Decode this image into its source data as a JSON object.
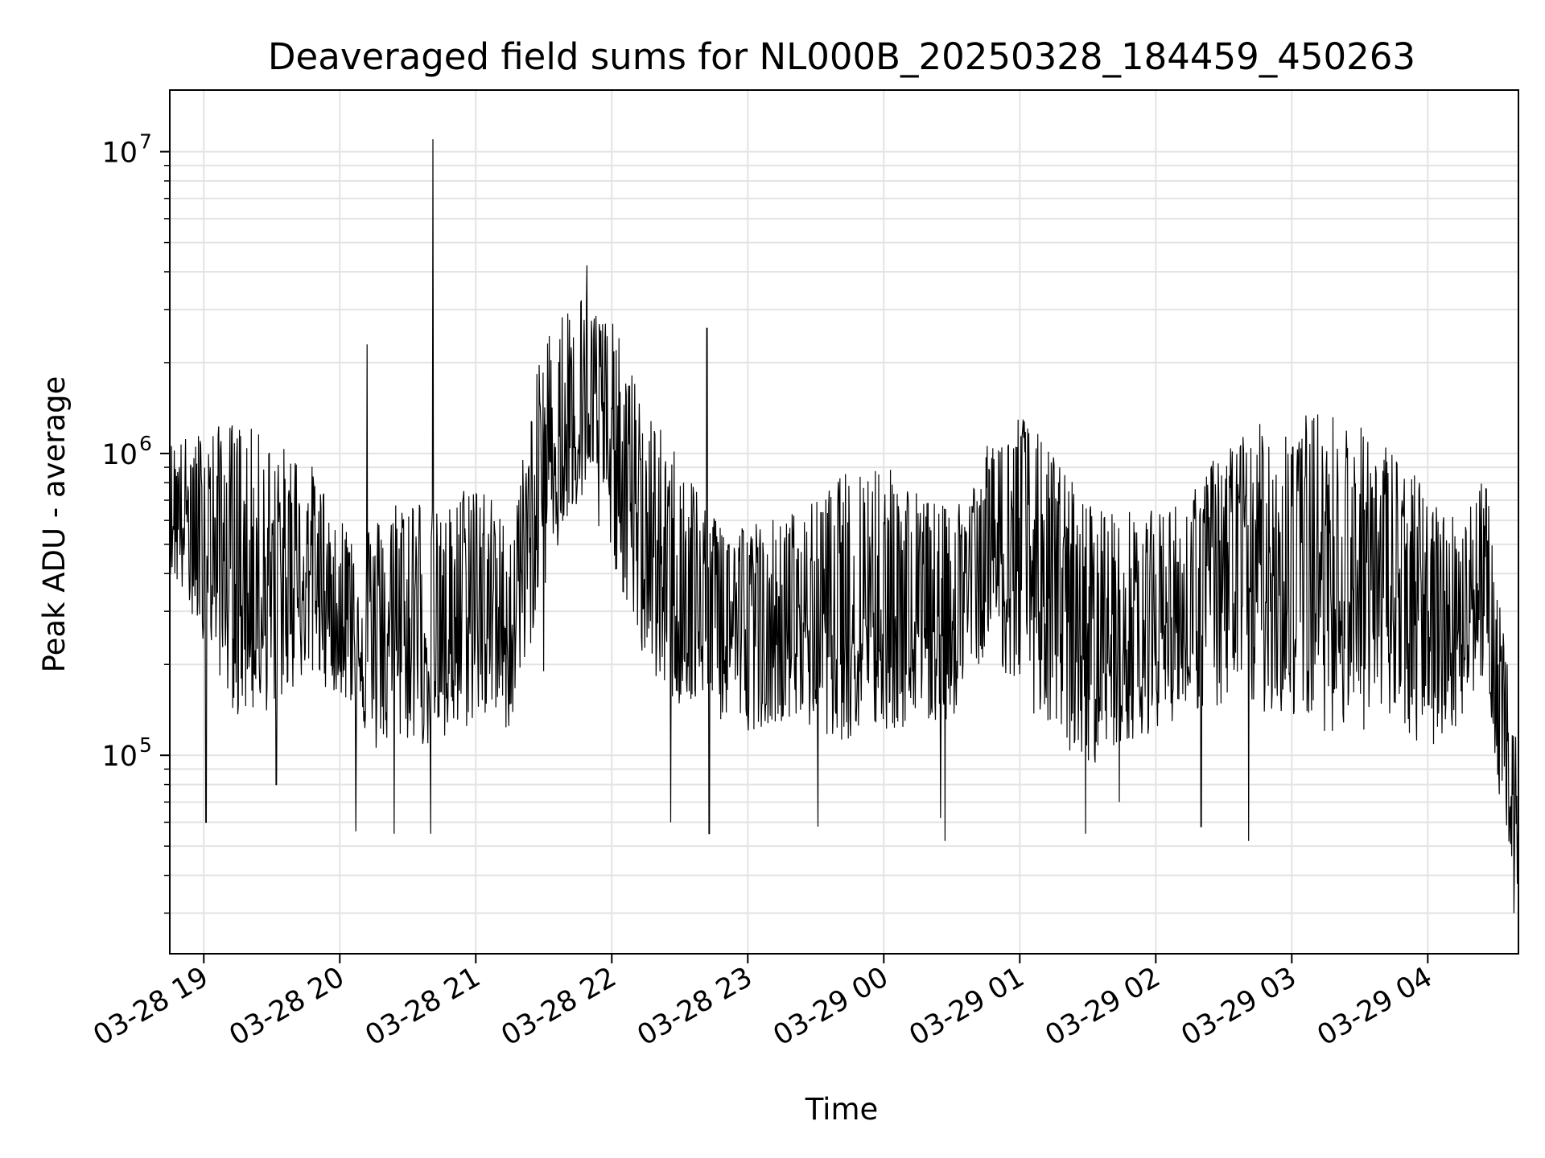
{
  "chart_data": {
    "type": "line",
    "title": "Deaveraged field sums for NL000B_20250328_184459_450263",
    "xlabel": "Time",
    "ylabel": "Peak ADU - average",
    "yscale": "log",
    "ylim": [
      22000,
      16000000
    ],
    "xlim": [
      "2025-03-28 18:45",
      "2025-03-29 04:40"
    ],
    "grid": true,
    "x_ticks": [
      "03-28 19",
      "03-28 20",
      "03-28 21",
      "03-28 22",
      "03-28 23",
      "03-29 00",
      "03-29 01",
      "03-29 02",
      "03-29 03",
      "03-29 04"
    ],
    "y_ticks": [
      {
        "base": "10",
        "exp": "5"
      },
      {
        "base": "10",
        "exp": "6"
      },
      {
        "base": "10",
        "exp": "7"
      }
    ],
    "series": [
      {
        "name": "",
        "color": "#000000",
        "envelope": {
          "x": [
            "2025-03-28 18:45",
            "2025-03-28 19:00",
            "2025-03-28 19:15",
            "2025-03-28 19:30",
            "2025-03-28 19:45",
            "2025-03-28 20:00",
            "2025-03-28 20:15",
            "2025-03-28 20:30",
            "2025-03-28 20:45",
            "2025-03-28 21:00",
            "2025-03-28 21:15",
            "2025-03-28 21:30",
            "2025-03-28 21:45",
            "2025-03-28 22:00",
            "2025-03-28 22:15",
            "2025-03-28 22:30",
            "2025-03-28 22:45",
            "2025-03-28 23:00",
            "2025-03-28 23:15",
            "2025-03-28 23:30",
            "2025-03-28 23:45",
            "2025-03-29 00:00",
            "2025-03-29 00:15",
            "2025-03-29 00:30",
            "2025-03-29 00:45",
            "2025-03-29 01:00",
            "2025-03-29 01:15",
            "2025-03-29 01:30",
            "2025-03-29 01:45",
            "2025-03-29 02:00",
            "2025-03-29 02:15",
            "2025-03-29 02:30",
            "2025-03-29 02:45",
            "2025-03-29 03:00",
            "2025-03-29 03:15",
            "2025-03-29 03:30",
            "2025-03-29 03:45",
            "2025-03-29 04:00",
            "2025-03-29 04:15",
            "2025-03-29 04:25",
            "2025-03-29 04:32",
            "2025-03-29 04:40"
          ],
          "upper": [
            1100000,
            1200000,
            1300000,
            1100000,
            1000000,
            620000,
            600000,
            800000,
            620000,
            900000,
            550000,
            2500000,
            3500000,
            2800000,
            1400000,
            1000000,
            650000,
            600000,
            620000,
            700000,
            900000,
            1000000,
            750000,
            650000,
            1050000,
            1400000,
            1000000,
            700000,
            650000,
            650000,
            720000,
            1100000,
            1250000,
            1350000,
            1400000,
            1250000,
            1050000,
            750000,
            600000,
            950000,
            300000,
            130000
          ],
          "lower": [
            400000,
            240000,
            130000,
            140000,
            180000,
            160000,
            100000,
            110000,
            100000,
            130000,
            120000,
            350000,
            650000,
            450000,
            190000,
            140000,
            130000,
            120000,
            130000,
            120000,
            110000,
            120000,
            120000,
            130000,
            220000,
            160000,
            110000,
            90000,
            110000,
            120000,
            140000,
            140000,
            140000,
            130000,
            120000,
            120000,
            120000,
            100000,
            130000,
            180000,
            70000,
            35000
          ]
        },
        "spikes": [
          {
            "x": "2025-03-28 19:01",
            "y": 60000
          },
          {
            "x": "2025-03-28 19:32",
            "y": 80000
          },
          {
            "x": "2025-03-28 20:07",
            "y": 56000
          },
          {
            "x": "2025-03-28 20:12",
            "y": 2300000
          },
          {
            "x": "2025-03-28 20:24",
            "y": 55000
          },
          {
            "x": "2025-03-28 20:40",
            "y": 55000
          },
          {
            "x": "2025-03-28 20:41",
            "y": 11000000
          },
          {
            "x": "2025-03-28 21:30",
            "y": 190000
          },
          {
            "x": "2025-03-28 21:49",
            "y": 4200000
          },
          {
            "x": "2025-03-28 22:02",
            "y": 2200000
          },
          {
            "x": "2025-03-28 22:26",
            "y": 60000
          },
          {
            "x": "2025-03-28 22:42",
            "y": 2600000
          },
          {
            "x": "2025-03-28 22:43",
            "y": 55000
          },
          {
            "x": "2025-03-28 23:31",
            "y": 58000
          },
          {
            "x": "2025-03-29 00:25",
            "y": 62000
          },
          {
            "x": "2025-03-29 00:27",
            "y": 52000
          },
          {
            "x": "2025-03-29 01:29",
            "y": 55000
          },
          {
            "x": "2025-03-29 01:44",
            "y": 70000
          },
          {
            "x": "2025-03-29 02:20",
            "y": 58000
          },
          {
            "x": "2025-03-29 02:41",
            "y": 52000
          },
          {
            "x": "2025-03-29 04:38",
            "y": 30000
          }
        ]
      }
    ]
  }
}
